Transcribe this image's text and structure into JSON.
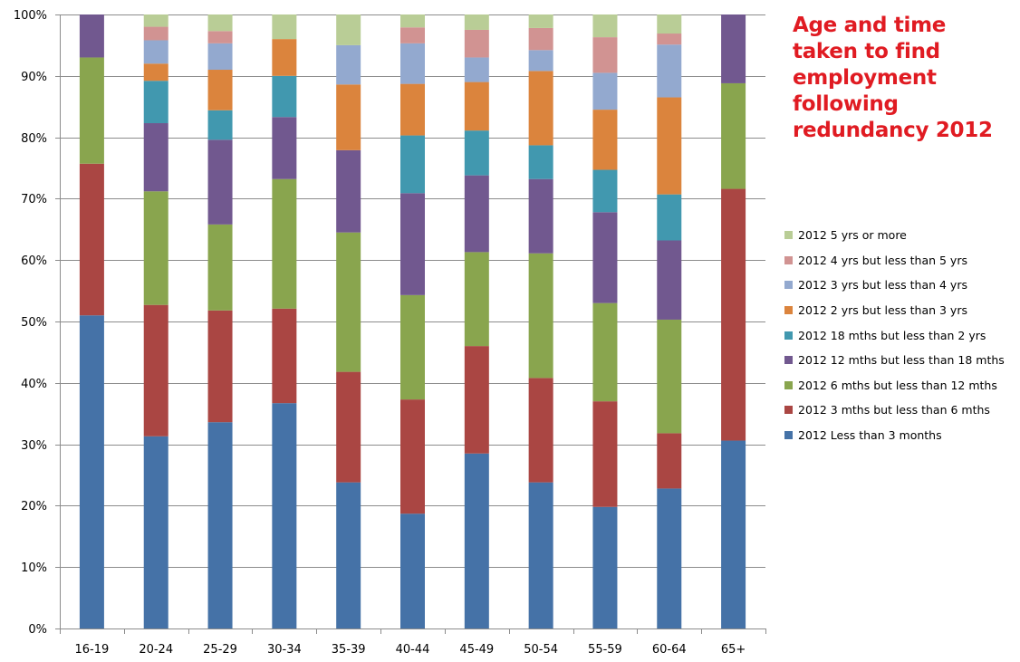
{
  "chart_data": {
    "type": "bar",
    "stacked": true,
    "title": "Age and time taken to find employment following redundancy 2012",
    "categories": [
      "16-19",
      "20-24",
      "25-29",
      "30-34",
      "35-39",
      "40-44",
      "45-49",
      "50-54",
      "55-59",
      "60-64",
      "65+"
    ],
    "ylim": [
      0,
      100
    ],
    "y_ticks": [
      "0%",
      "10%",
      "20%",
      "30%",
      "40%",
      "50%",
      "60%",
      "70%",
      "80%",
      "90%",
      "100%"
    ],
    "grid": true,
    "legend_position": "right",
    "series": [
      {
        "name": "2012 Less than 3 months",
        "color": "#4572a7",
        "values": [
          51.0,
          31.3,
          33.6,
          36.7,
          23.8,
          18.7,
          28.5,
          23.8,
          19.8,
          22.8,
          30.6
        ]
      },
      {
        "name": "2012 3 mths but less than 6 mths",
        "color": "#aa4643",
        "values": [
          24.7,
          21.4,
          18.2,
          15.4,
          18.0,
          18.6,
          17.5,
          17.0,
          17.2,
          9.0,
          41.0
        ]
      },
      {
        "name": "2012 6 mths but less than 12 mths",
        "color": "#89a54e",
        "values": [
          17.3,
          18.5,
          14.0,
          21.1,
          22.7,
          17.0,
          15.3,
          20.3,
          16.0,
          18.5,
          17.2
        ]
      },
      {
        "name": "2012 12 mths but less than 18 mths",
        "color": "#71588f",
        "values": [
          7.0,
          11.1,
          13.8,
          10.1,
          13.4,
          16.6,
          12.5,
          12.1,
          14.8,
          12.9,
          11.2
        ]
      },
      {
        "name": "2012 18 mths but less than 2 yrs",
        "color": "#4198af",
        "values": [
          0,
          6.9,
          4.8,
          6.7,
          0,
          9.4,
          7.3,
          5.5,
          6.9,
          7.5,
          0
        ]
      },
      {
        "name": "2012 2 yrs but less than 3 yrs",
        "color": "#db843d",
        "values": [
          0,
          2.8,
          6.6,
          6.0,
          10.7,
          8.4,
          7.9,
          12.1,
          9.8,
          15.8,
          0
        ]
      },
      {
        "name": "2012 3 yrs but less than 4 yrs",
        "color": "#93a9cf",
        "values": [
          0,
          3.8,
          4.3,
          0,
          6.4,
          6.6,
          4.0,
          3.4,
          6.0,
          8.6,
          0
        ]
      },
      {
        "name": "2012 4 yrs but less than 5 yrs",
        "color": "#d19392",
        "values": [
          0,
          2.2,
          2.0,
          0,
          0,
          2.6,
          4.5,
          3.6,
          5.8,
          1.8,
          0
        ]
      },
      {
        "name": "2012 5 yrs or more",
        "color": "#b9cd96",
        "values": [
          0,
          2.0,
          2.7,
          4.0,
          5.0,
          2.1,
          2.5,
          2.2,
          3.7,
          3.1,
          0
        ]
      }
    ]
  }
}
